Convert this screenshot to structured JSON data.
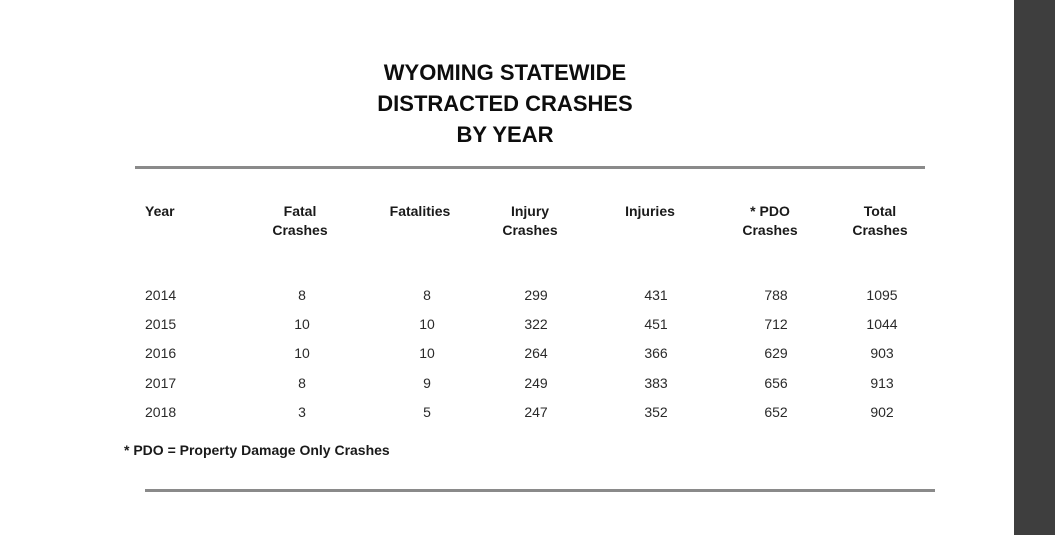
{
  "title_lines": [
    "WYOMING STATEWIDE",
    "DISTRACTED CRASHES",
    "BY YEAR"
  ],
  "headers": [
    [
      "Year"
    ],
    [
      "Fatal",
      "Crashes"
    ],
    [
      "Fatalities"
    ],
    [
      "Injury",
      "Crashes"
    ],
    [
      "Injuries"
    ],
    [
      "* PDO",
      "Crashes"
    ],
    [
      "Total",
      "Crashes"
    ]
  ],
  "rows": [
    [
      "2014",
      "8",
      "8",
      "299",
      "431",
      "788",
      "1095"
    ],
    [
      "2015",
      "10",
      "10",
      "322",
      "451",
      "712",
      "1044"
    ],
    [
      "2016",
      "10",
      "10",
      "264",
      "366",
      "629",
      "903"
    ],
    [
      "2017",
      "8",
      "9",
      "249",
      "383",
      "656",
      "913"
    ],
    [
      "2018",
      "3",
      "5",
      "247",
      "352",
      "652",
      "902"
    ]
  ],
  "footnote": "* PDO = Property Damage Only Crashes"
}
